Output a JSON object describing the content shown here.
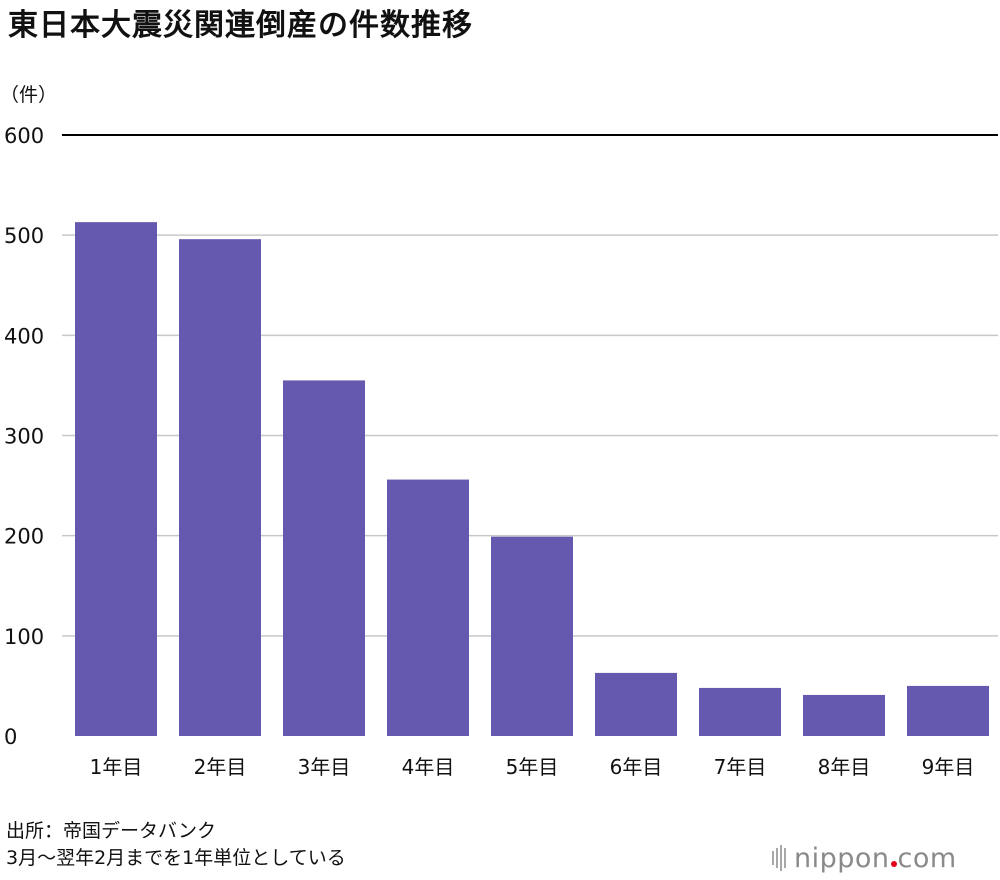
{
  "title": "東日本大震災関連倒産の件数推移",
  "footer": {
    "source": "出所：帝国データバンク",
    "note": "3月〜翌年2月までを1年単位としている"
  },
  "logo": {
    "name": "nippon",
    "tld": "com"
  },
  "colors": {
    "bar": "#6459ae",
    "grid": "#c8c8c8",
    "top_grid": "#000000",
    "text": "#111111",
    "logo_dot": "#e2001a"
  },
  "chart_data": {
    "type": "bar",
    "title": "東日本大震災関連倒産の件数推移",
    "ylabel": "（件）",
    "xlabel": "",
    "categories": [
      "1年目",
      "2年目",
      "3年目",
      "4年目",
      "5年目",
      "6年目",
      "7年目",
      "8年目",
      "9年目"
    ],
    "values": [
      513,
      496,
      355,
      256,
      199,
      63,
      48,
      41,
      50
    ],
    "ylim": [
      0,
      600
    ],
    "yticks": [
      0,
      100,
      200,
      300,
      400,
      500,
      600
    ],
    "grid": true,
    "legend": "none"
  }
}
